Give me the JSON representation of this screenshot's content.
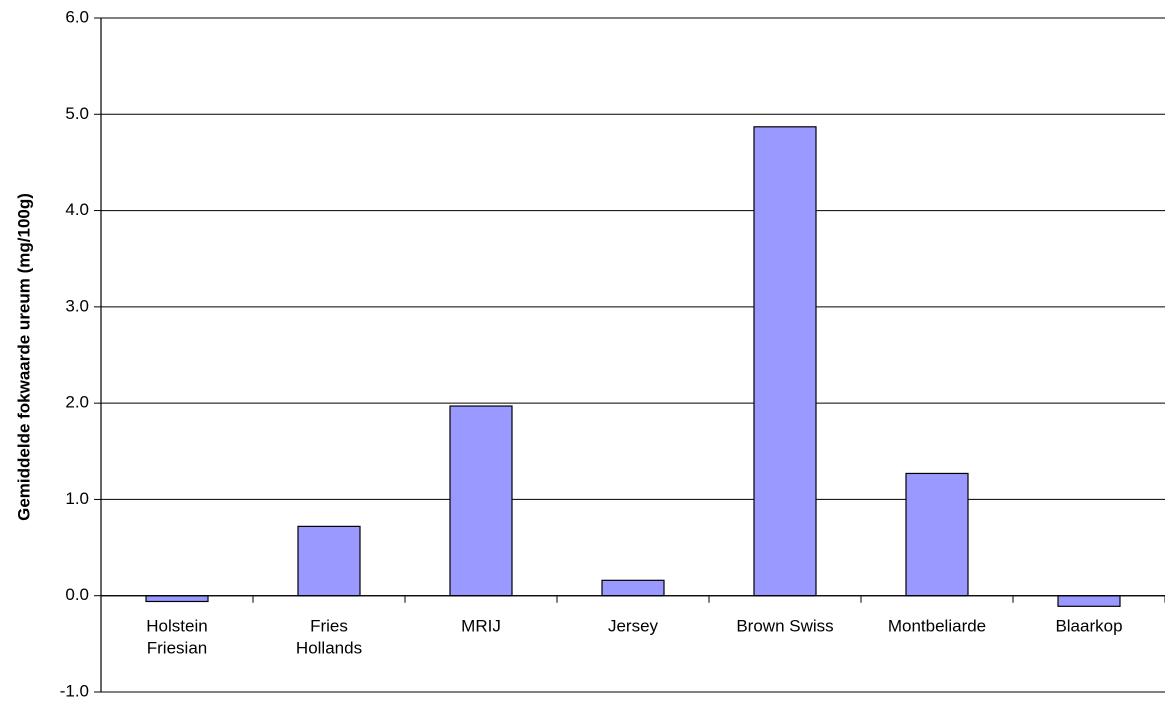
{
  "chart_data": {
    "type": "bar",
    "title": "",
    "xlabel": "",
    "ylabel": "Gemiddelde fokwaarde ureum (mg/100g)",
    "ylim": [
      -1.0,
      6.0
    ],
    "yticks": [
      "-1.0",
      "0.0",
      "1.0",
      "2.0",
      "3.0",
      "4.0",
      "5.0",
      "6.0"
    ],
    "grid": true,
    "categories": [
      [
        "Holstein",
        "Friesian"
      ],
      [
        "Fries",
        "Hollands"
      ],
      [
        "MRIJ"
      ],
      [
        "Jersey"
      ],
      [
        "Brown Swiss"
      ],
      [
        "Montbeliarde"
      ],
      [
        "Blaarkop"
      ]
    ],
    "values": [
      -0.06,
      0.72,
      1.97,
      0.16,
      4.87,
      1.27,
      -0.11
    ],
    "bar_color": "#9999FF"
  }
}
